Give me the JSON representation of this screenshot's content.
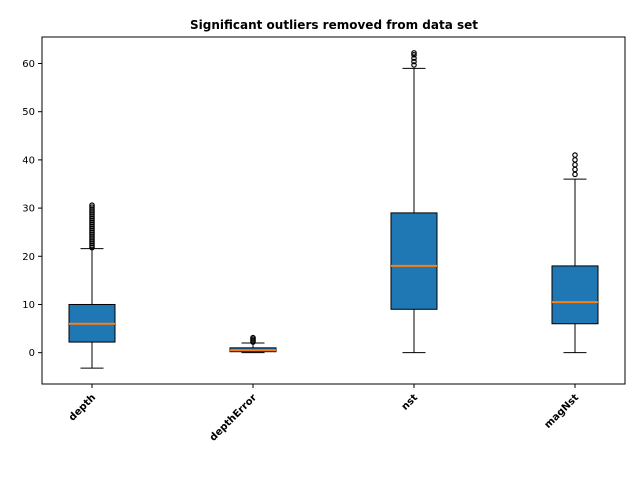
{
  "chart_data": {
    "type": "box",
    "title": "Significant outliers removed from data set",
    "xlabel": "",
    "ylabel": "",
    "ylim": [
      -6.5,
      65.5
    ],
    "yticks": [
      0,
      10,
      20,
      30,
      40,
      50,
      60
    ],
    "grid": false,
    "colors": {
      "box": "#1f77b4",
      "median": "#ff7f0e",
      "outline": "#000000"
    },
    "categories": [
      "depth",
      "depthError",
      "nst",
      "magNst"
    ],
    "boxes": [
      {
        "label": "depth",
        "whisker_low": -3.2,
        "q1": 2.2,
        "median": 6.0,
        "q3": 10.0,
        "whisker_high": 21.6,
        "outliers": [
          21.8,
          22.2,
          22.6,
          23.0,
          23.4,
          23.8,
          24.2,
          24.6,
          25.0,
          25.4,
          25.8,
          26.2,
          26.6,
          27.0,
          27.4,
          27.8,
          28.2,
          28.6,
          29.0,
          29.4,
          29.8,
          30.2,
          30.6
        ]
      },
      {
        "label": "depthError",
        "whisker_low": 0.0,
        "q1": 0.2,
        "median": 0.5,
        "q3": 1.0,
        "whisker_high": 2.0,
        "outliers": [
          2.2,
          2.5,
          2.8,
          3.1
        ]
      },
      {
        "label": "nst",
        "whisker_low": 0.0,
        "q1": 9.0,
        "median": 18.0,
        "q3": 29.0,
        "whisker_high": 59.0,
        "outliers": [
          59.7,
          60.4,
          61.1,
          61.8,
          62.2
        ]
      },
      {
        "label": "magNst",
        "whisker_low": 0.0,
        "q1": 6.0,
        "median": 10.5,
        "q3": 18.0,
        "whisker_high": 36.0,
        "outliers": [
          37.0,
          38.0,
          39.0,
          40.0,
          41.0
        ]
      }
    ]
  }
}
